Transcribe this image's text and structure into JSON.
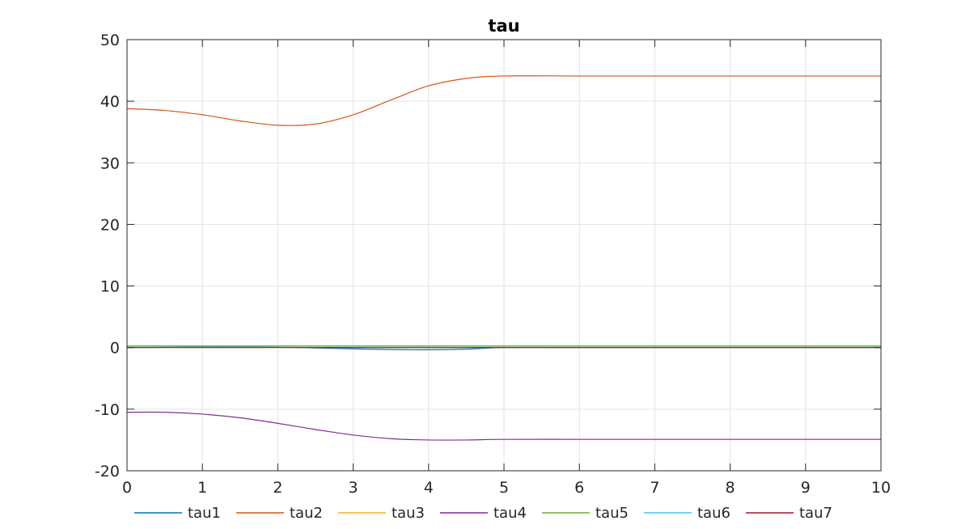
{
  "chart_data": {
    "type": "line",
    "title": "tau",
    "xlabel": "",
    "ylabel": "",
    "xlim": [
      0,
      10
    ],
    "ylim": [
      -20,
      50
    ],
    "xticks": [
      0,
      1,
      2,
      3,
      4,
      5,
      6,
      7,
      8,
      9,
      10
    ],
    "yticks": [
      -20,
      -10,
      0,
      10,
      20,
      30,
      40,
      50
    ],
    "grid": true,
    "legend": "bottom",
    "x": [
      0,
      0.5,
      1,
      1.5,
      2,
      2.5,
      3,
      3.5,
      4,
      4.5,
      5,
      6,
      7,
      8,
      9,
      10
    ],
    "series": [
      {
        "name": "tau1",
        "color": "#0072BD",
        "values": [
          0.0,
          0.05,
          0.1,
          0.1,
          0.05,
          -0.05,
          -0.2,
          -0.3,
          -0.35,
          -0.25,
          0.0,
          0.0,
          0.0,
          0.0,
          0.0,
          0.0
        ]
      },
      {
        "name": "tau2",
        "color": "#D95319",
        "values": [
          38.8,
          38.5,
          37.8,
          36.8,
          36.1,
          36.3,
          37.8,
          40.2,
          42.5,
          43.7,
          44.1,
          44.1,
          44.1,
          44.1,
          44.1,
          44.1
        ]
      },
      {
        "name": "tau3",
        "color": "#EDB120",
        "values": [
          0.3,
          0.3,
          0.3,
          0.3,
          0.3,
          0.3,
          0.3,
          0.3,
          0.3,
          0.3,
          0.3,
          0.3,
          0.3,
          0.3,
          0.3,
          0.3
        ]
      },
      {
        "name": "tau4",
        "color": "#7E2F8E",
        "values": [
          -10.5,
          -10.5,
          -10.8,
          -11.4,
          -12.3,
          -13.3,
          -14.2,
          -14.8,
          -15.0,
          -15.0,
          -14.9,
          -14.9,
          -14.9,
          -14.9,
          -14.9,
          -14.9
        ]
      },
      {
        "name": "tau5",
        "color": "#77AC30",
        "values": [
          0.25,
          0.25,
          0.25,
          0.25,
          0.25,
          0.25,
          0.25,
          0.25,
          0.25,
          0.25,
          0.25,
          0.25,
          0.25,
          0.25,
          0.25,
          0.25
        ]
      },
      {
        "name": "tau6",
        "color": "#4DBEEE",
        "values": [
          0.05,
          0.05,
          0.05,
          0.05,
          0.05,
          0.05,
          0.05,
          0.05,
          0.05,
          0.05,
          0.05,
          0.05,
          0.05,
          0.05,
          0.05,
          0.05
        ]
      },
      {
        "name": "tau7",
        "color": "#A2142F",
        "values": [
          0.0,
          0.0,
          0.0,
          0.0,
          0.0,
          0.0,
          0.0,
          0.0,
          0.0,
          0.0,
          0.0,
          0.0,
          0.0,
          0.0,
          0.0,
          0.0
        ]
      }
    ]
  }
}
